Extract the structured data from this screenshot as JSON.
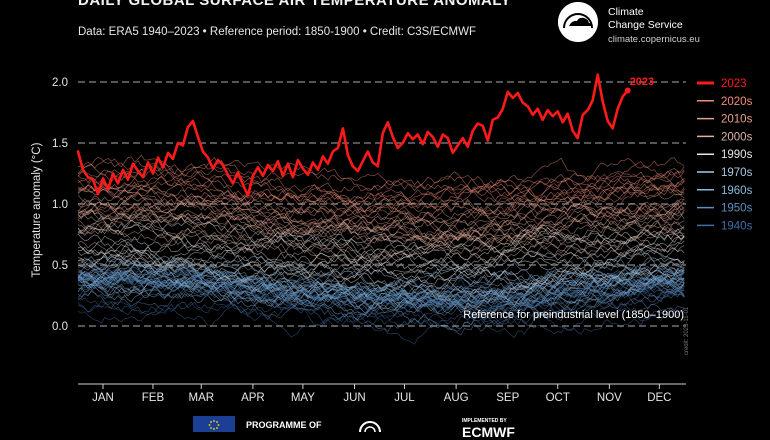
{
  "header": {
    "title": "DAILY GLOBAL SURFACE AIR TEMPERATURE ANOMALY",
    "subtitle": "Data: ERA5 1940–2023 • Reference period: 1850-1900 • Credit: C3S/ECMWF"
  },
  "brand": {
    "name_line1": "Climate",
    "name_line2": "Change Service",
    "url": "climate.copernicus.eu"
  },
  "footer": {
    "programme": "PROGRAMME OF",
    "implemented_by": "IMPLEMENTED BY",
    "ecmwf": "ECMWF",
    "side_credit": "credit: 2023-11-01"
  },
  "colors": {
    "series_2023": "#ff1a1a",
    "decade_2020s": "#f08c78",
    "decade_2010s": "#e8a08c",
    "decade_2000s": "#dcb4a4",
    "decade_1990s": "#e6e6e6",
    "decade_1970s": "#a7c9e4",
    "decade_1960s": "#8ab8e0",
    "decade_1950s": "#5f8fc0",
    "decade_1940s": "#3f6fa8",
    "grid": "#a0a0a0"
  },
  "chart_data": {
    "type": "line",
    "title": "DAILY GLOBAL SURFACE AIR TEMPERATURE ANOMALY",
    "ylabel": "Temperature anomaly (°C)",
    "xlabel": "",
    "ylim": [
      -0.5,
      2.1
    ],
    "yticks": [
      0.0,
      0.5,
      1.0,
      1.5,
      2.0
    ],
    "ytick_labels": [
      "0.0",
      "0.5",
      "1.0",
      "1.5",
      "2.0"
    ],
    "xlim": [
      0,
      365
    ],
    "month_labels": [
      "JAN",
      "FEB",
      "MAR",
      "APR",
      "MAY",
      "JUN",
      "JUL",
      "AUG",
      "SEP",
      "OCT",
      "NOV",
      "DEC"
    ],
    "month_centers_doy": [
      15,
      45,
      74,
      105,
      135,
      166,
      196,
      227,
      258,
      288,
      319,
      349
    ],
    "grid": "dashed horizontal",
    "legend_position": "right",
    "reference_label": "Reference for preindustrial level (1850–1900)",
    "series": [
      {
        "name": "2023",
        "color": "#ff1a1a",
        "x": [
          0,
          3,
          6,
          9,
          12,
          15,
          18,
          21,
          24,
          27,
          30,
          33,
          36,
          39,
          42,
          45,
          48,
          51,
          54,
          57,
          60,
          63,
          66,
          69,
          72,
          75,
          78,
          81,
          84,
          87,
          90,
          93,
          96,
          99,
          102,
          105,
          108,
          111,
          114,
          117,
          120,
          123,
          126,
          129,
          132,
          135,
          138,
          141,
          144,
          147,
          150,
          153,
          156,
          159,
          162,
          165,
          168,
          171,
          174,
          177,
          180,
          183,
          186,
          189,
          192,
          195,
          198,
          201,
          204,
          207,
          210,
          213,
          216,
          219,
          222,
          225,
          228,
          231,
          234,
          237,
          240,
          243,
          246,
          249,
          252,
          255,
          258,
          261,
          264,
          267,
          270,
          273,
          276,
          279,
          282,
          285,
          288,
          291,
          294,
          297,
          300,
          303,
          306,
          309,
          312,
          315,
          318,
          321,
          324,
          327,
          330
        ],
        "values": [
          1.43,
          1.28,
          1.22,
          1.2,
          1.08,
          1.21,
          1.12,
          1.25,
          1.17,
          1.28,
          1.2,
          1.33,
          1.27,
          1.22,
          1.34,
          1.25,
          1.38,
          1.3,
          1.42,
          1.37,
          1.5,
          1.48,
          1.63,
          1.68,
          1.55,
          1.43,
          1.38,
          1.29,
          1.36,
          1.32,
          1.24,
          1.17,
          1.26,
          1.16,
          1.07,
          1.23,
          1.3,
          1.23,
          1.32,
          1.27,
          1.35,
          1.23,
          1.33,
          1.22,
          1.36,
          1.29,
          1.24,
          1.34,
          1.28,
          1.39,
          1.33,
          1.43,
          1.46,
          1.62,
          1.4,
          1.31,
          1.27,
          1.35,
          1.43,
          1.34,
          1.31,
          1.58,
          1.67,
          1.55,
          1.46,
          1.5,
          1.58,
          1.53,
          1.57,
          1.49,
          1.59,
          1.55,
          1.47,
          1.57,
          1.54,
          1.42,
          1.48,
          1.54,
          1.47,
          1.6,
          1.66,
          1.64,
          1.52,
          1.69,
          1.71,
          1.78,
          1.92,
          1.87,
          1.91,
          1.83,
          1.8,
          1.73,
          1.78,
          1.69,
          1.77,
          1.72,
          1.76,
          1.67,
          1.74,
          1.6,
          1.54,
          1.73,
          1.77,
          1.85,
          2.06,
          1.84,
          1.68,
          1.62,
          1.78,
          1.88,
          1.93
        ]
      },
      {
        "name": "2020s",
        "color": "#f08c78",
        "mean": 1.15
      },
      {
        "name": "2010s",
        "color": "#e8a08c",
        "mean": 0.95
      },
      {
        "name": "2000s",
        "color": "#dcb4a4",
        "mean": 0.75
      },
      {
        "name": "1990s",
        "color": "#e6e6e6",
        "mean": 0.6
      },
      {
        "name": "1970s",
        "color": "#a7c9e4",
        "mean": 0.4
      },
      {
        "name": "1960s",
        "color": "#8ab8e0",
        "mean": 0.3
      },
      {
        "name": "1950s",
        "color": "#5f8fc0",
        "mean": 0.25
      },
      {
        "name": "1940s",
        "color": "#3f6fa8",
        "mean": 0.2
      }
    ]
  }
}
